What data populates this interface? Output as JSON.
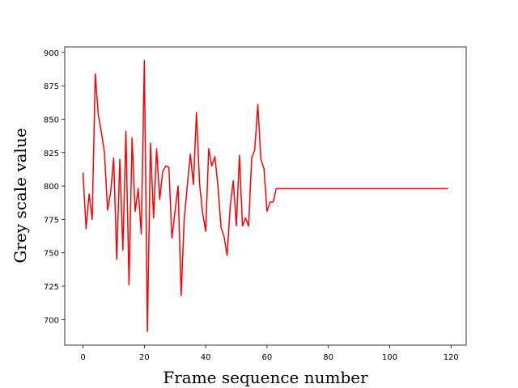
{
  "chart_data": {
    "type": "line",
    "xlabel": "Frame sequence number",
    "ylabel": "Grey scale value",
    "color": "#ff0000",
    "x": [
      0,
      1,
      2,
      3,
      4,
      5,
      6,
      7,
      8,
      9,
      10,
      11,
      12,
      13,
      14,
      15,
      16,
      17,
      18,
      19,
      20,
      21,
      22,
      23,
      24,
      25,
      26,
      27,
      28,
      29,
      30,
      31,
      32,
      33,
      34,
      35,
      36,
      37,
      38,
      39,
      40,
      41,
      42,
      43,
      44,
      45,
      46,
      47,
      48,
      49,
      50,
      51,
      52,
      53,
      54,
      55,
      56,
      57,
      58,
      59,
      60,
      61,
      62,
      63,
      64,
      65,
      66,
      67,
      68,
      69,
      70,
      71,
      72,
      73,
      74,
      75,
      76,
      77,
      78,
      79,
      80,
      81,
      82,
      83,
      84,
      85,
      86,
      87,
      88,
      89,
      90,
      91,
      92,
      93,
      94,
      95,
      96,
      97,
      98,
      99,
      100,
      101,
      102,
      103,
      104,
      105,
      106,
      107,
      108,
      109,
      110,
      111,
      112,
      113,
      114,
      115,
      116,
      117,
      118,
      119
    ],
    "values": [
      810,
      768,
      794,
      775,
      884,
      853,
      840,
      825,
      782,
      795,
      821,
      745,
      820,
      752,
      841,
      726,
      836,
      781,
      798,
      764,
      894,
      691,
      832,
      776,
      828,
      790,
      811,
      815,
      814,
      761,
      781,
      800,
      718,
      775,
      800,
      824,
      801,
      855,
      802,
      780,
      766,
      828,
      815,
      822,
      800,
      769,
      762,
      748,
      785,
      804,
      770,
      823,
      770,
      776,
      770,
      821,
      827,
      861,
      820,
      813,
      781,
      788,
      788,
      798,
      798,
      798,
      798,
      798,
      798,
      798,
      798,
      798,
      798,
      798,
      798,
      798,
      798,
      798,
      798,
      798,
      798,
      798,
      798,
      798,
      798,
      798,
      798,
      798,
      798,
      798,
      798,
      798,
      798,
      798,
      798,
      798,
      798,
      798,
      798,
      798,
      798,
      798,
      798,
      798,
      798,
      798,
      798,
      798,
      798,
      798,
      798,
      798,
      798,
      798,
      798,
      798,
      798,
      798,
      798,
      798
    ],
    "xlim": [
      -5.95,
      124.95
    ],
    "ylim": [
      680.85,
      904.15
    ],
    "xticks": [
      0,
      20,
      40,
      60,
      80,
      100,
      120
    ],
    "yticks": [
      700,
      725,
      750,
      775,
      800,
      825,
      850,
      875,
      900
    ]
  }
}
